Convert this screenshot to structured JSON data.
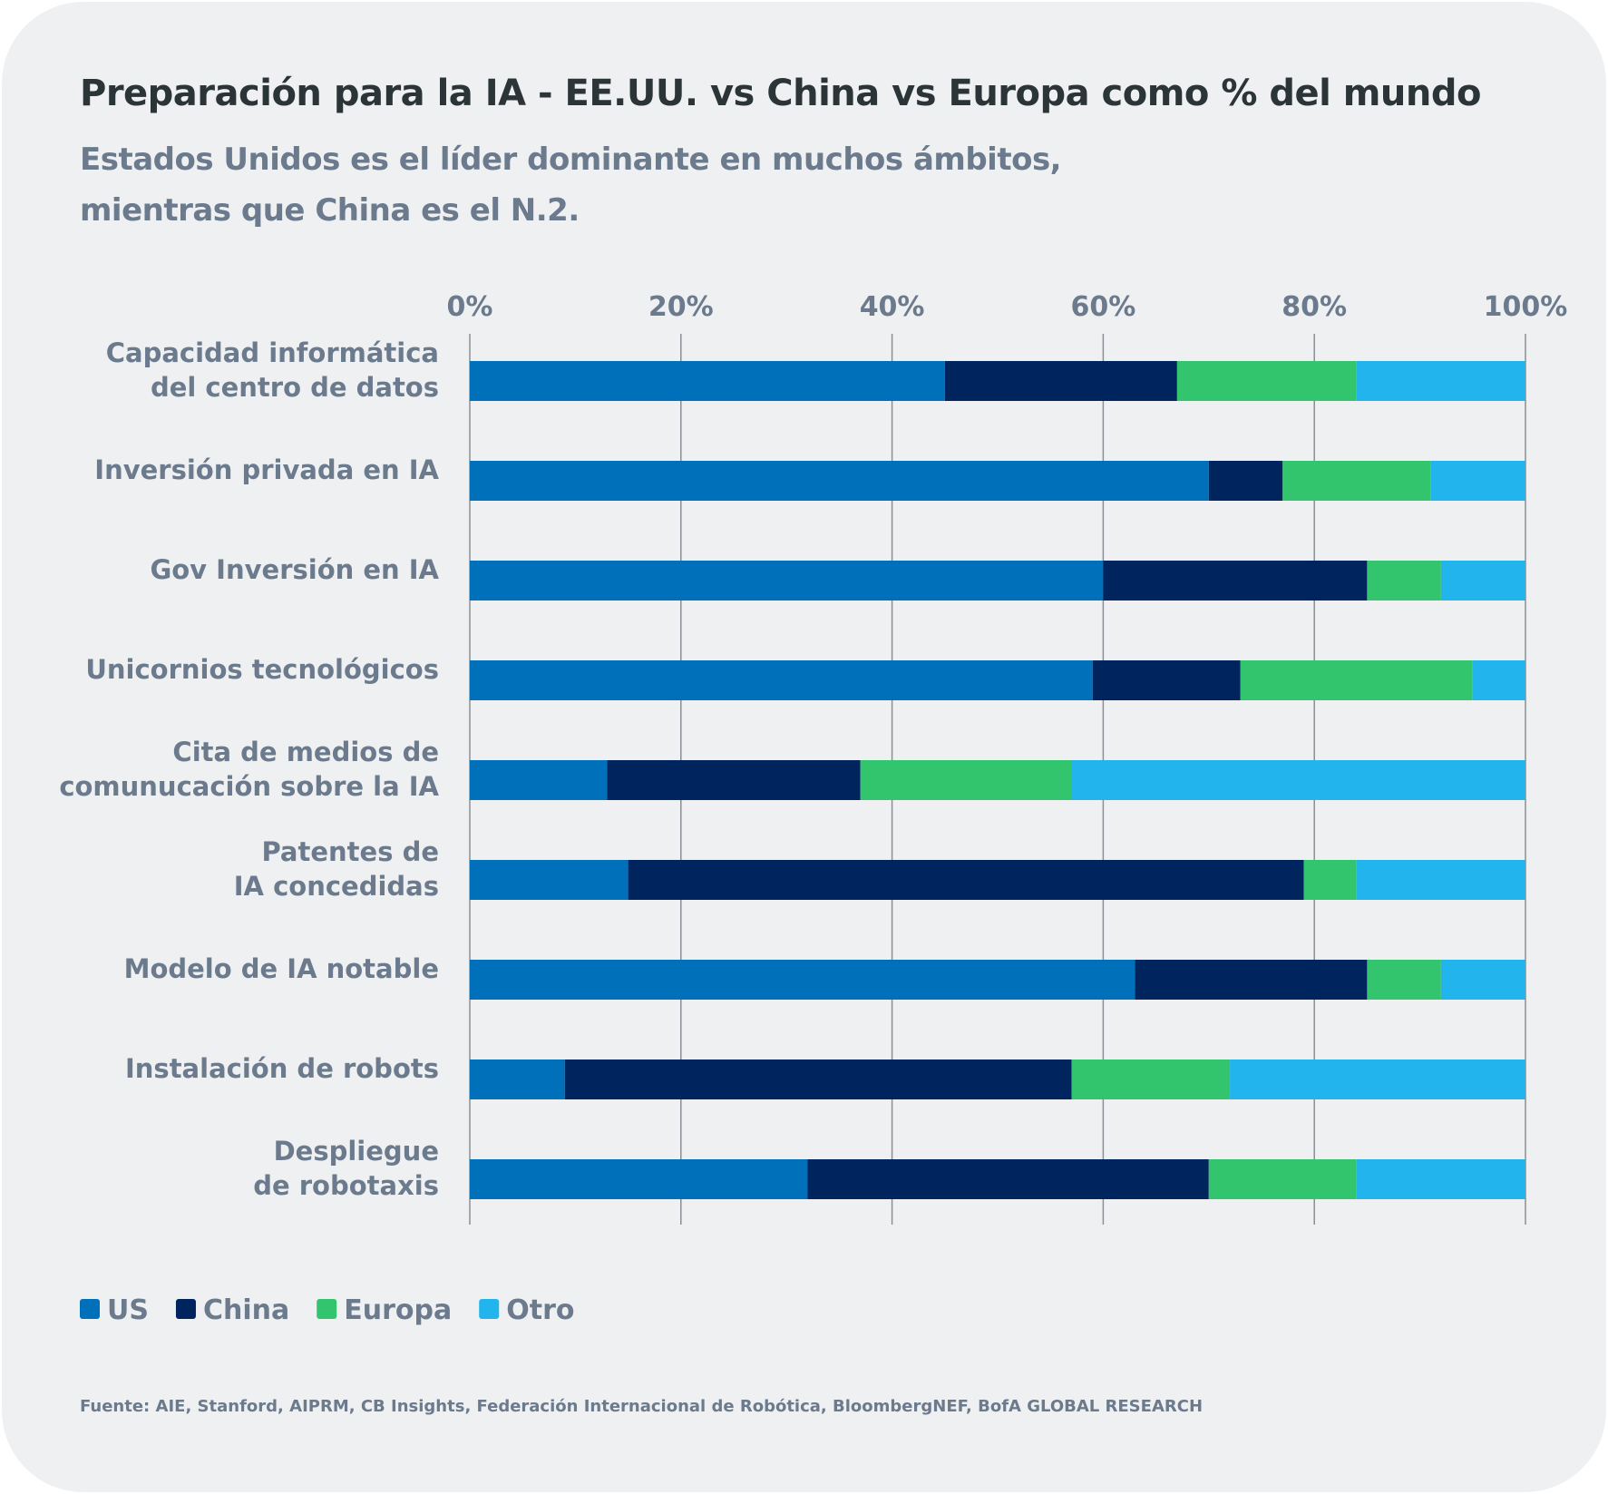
{
  "chart_data": {
    "type": "bar",
    "orientation": "horizontal",
    "stacked": true,
    "title": "Preparación para la IA - EE.UU. vs China vs Europa como % del mundo",
    "subtitle": "Estados Unidos es el líder dominante en muchos ámbitos,\nmientras que China es el N.2.",
    "categories": [
      [
        "Capacidad informática",
        "del centro de datos"
      ],
      [
        "Inversión privada en IA"
      ],
      [
        "Gov Inversión en IA"
      ],
      [
        "Unicornios tecnológicos"
      ],
      [
        "Cita de medios de",
        "comunucación sobre la IA"
      ],
      [
        "Patentes de",
        "IA concedidas"
      ],
      [
        "Modelo de IA notable"
      ],
      [
        "Instalación de robots"
      ],
      [
        "Despliegue",
        "de robotaxis"
      ]
    ],
    "series": [
      {
        "name": "US",
        "color": "#0070ba",
        "values": [
          45,
          70,
          60,
          59,
          13,
          15,
          63,
          9,
          32
        ]
      },
      {
        "name": "China",
        "color": "#00245e",
        "values": [
          22,
          7,
          25,
          14,
          24,
          64,
          22,
          48,
          38
        ]
      },
      {
        "name": "Europa",
        "color": "#33c46e",
        "values": [
          17,
          14,
          7,
          22,
          20,
          5,
          7,
          15,
          14
        ]
      },
      {
        "name": "Otro",
        "color": "#22b5ed",
        "values": [
          16,
          9,
          8,
          5,
          43,
          16,
          8,
          28,
          16
        ]
      }
    ],
    "xlim": [
      0,
      100
    ],
    "xticks": [
      "0%",
      "20%",
      "40%",
      "60%",
      "80%",
      "100%"
    ],
    "xaxis_position": "top",
    "grid": true,
    "legend_position": "bottom-left",
    "source": "Fuente: AIE, Stanford, AIPRM, CB Insights, Federación Internacional de Robótica, BloombergNEF, BofA GLOBAL RESEARCH"
  }
}
